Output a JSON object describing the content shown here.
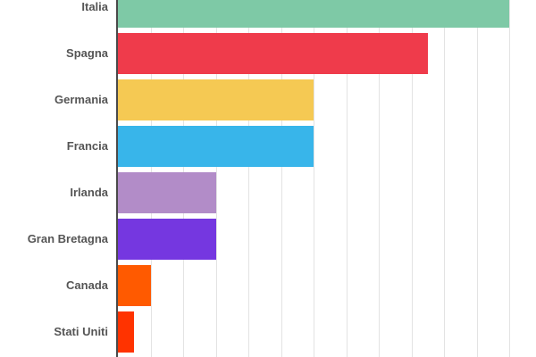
{
  "chart_data": {
    "type": "bar",
    "orientation": "horizontal",
    "title": "",
    "xlabel": "",
    "ylabel": "",
    "categories": [
      "Italia",
      "Spagna",
      "Germania",
      "Francia",
      "Irlanda",
      "Gran Bretagna",
      "Canada",
      "Stati Uniti"
    ],
    "values": [
      12,
      9.5,
      6,
      6,
      3,
      3,
      1,
      0.5
    ],
    "colors": [
      "#7ec9a6",
      "#ef3b4b",
      "#f5c953",
      "#38b5ea",
      "#b28cc8",
      "#7537e0",
      "#ff5a00",
      "#ff3300"
    ],
    "xlim": [
      0,
      12
    ],
    "grid": true,
    "legend": null
  }
}
